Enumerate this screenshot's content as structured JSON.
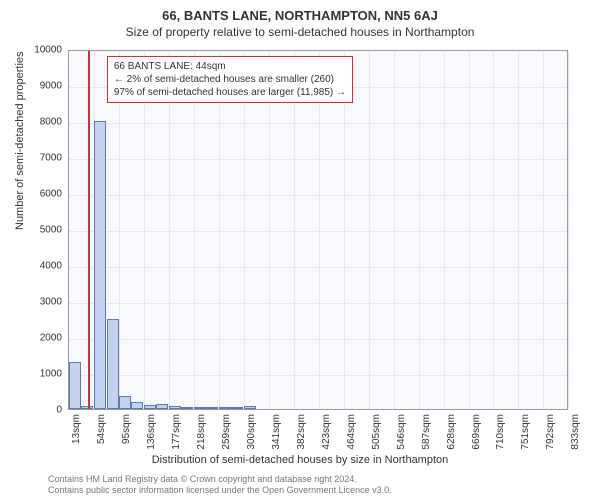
{
  "title_main": "66, BANTS LANE, NORTHAMPTON, NN5 6AJ",
  "title_sub": "Size of property relative to semi-detached houses in Northampton",
  "chart": {
    "type": "histogram",
    "background_color": "#f8f9fc",
    "grid_color": "#e5e7ee",
    "border_color": "#999999",
    "bar_fill": "#c3d3ef",
    "bar_stroke": "#5a7bb8",
    "marker_color": "#cc3333",
    "ylabel": "Number of semi-detached properties",
    "xlabel": "Distribution of semi-detached houses by size in Northampton",
    "ylim": [
      0,
      10000
    ],
    "ytick_step": 1000,
    "xlim": [
      13,
      834
    ],
    "xtick_start": 13,
    "xtick_step": 41,
    "xtick_unit": "sqm",
    "bar_width_sqm": 20,
    "x_marker": 44,
    "bars": [
      {
        "x": 13,
        "y": 1300
      },
      {
        "x": 33,
        "y": 80
      },
      {
        "x": 54,
        "y": 8000
      },
      {
        "x": 75,
        "y": 2500
      },
      {
        "x": 95,
        "y": 350
      },
      {
        "x": 115,
        "y": 200
      },
      {
        "x": 136,
        "y": 120
      },
      {
        "x": 156,
        "y": 130
      },
      {
        "x": 177,
        "y": 80
      },
      {
        "x": 197,
        "y": 60
      },
      {
        "x": 218,
        "y": 50
      },
      {
        "x": 238,
        "y": 50
      },
      {
        "x": 259,
        "y": 60
      },
      {
        "x": 279,
        "y": 40
      },
      {
        "x": 300,
        "y": 70
      }
    ],
    "annotation": {
      "line1": "66 BANTS LANE: 44sqm",
      "line2": "← 2% of semi-detached houses are smaller (260)",
      "line3": "97% of semi-detached houses are larger (11,985) →"
    },
    "title_fontsize": 13,
    "subtitle_fontsize": 12,
    "label_fontsize": 11,
    "tick_fontsize": 10,
    "annotation_fontsize": 10
  },
  "footer": {
    "line1": "Contains HM Land Registry data © Crown copyright and database right 2024.",
    "line2": "Contains public sector information licensed under the Open Government Licence v3.0."
  }
}
